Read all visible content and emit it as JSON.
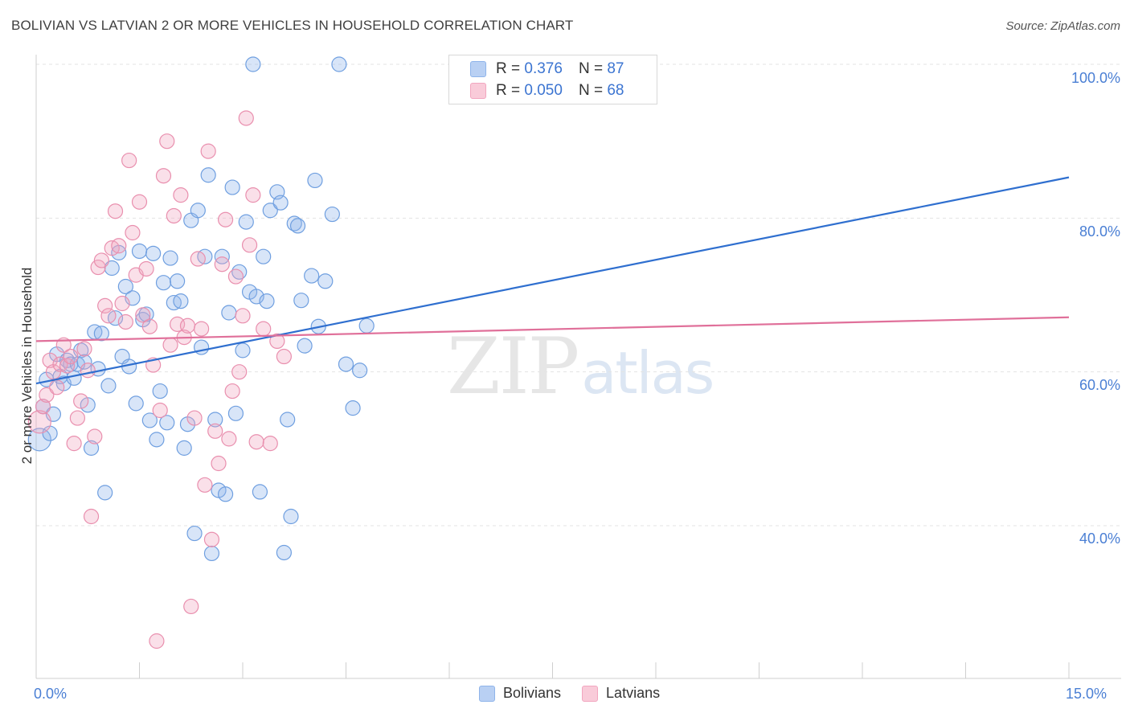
{
  "title": "BOLIVIAN VS LATVIAN 2 OR MORE VEHICLES IN HOUSEHOLD CORRELATION CHART",
  "source": "Source: ZipAtlas.com",
  "watermark": {
    "zip": "ZIP",
    "atlas": "atlas"
  },
  "legend": {
    "rows": [
      {
        "r_label": "R = ",
        "r_value": "0.376",
        "n_label": "N = ",
        "n_value": "87"
      },
      {
        "r_label": "R = ",
        "r_value": "0.050",
        "n_label": "N = ",
        "n_value": "68"
      }
    ]
  },
  "chart_data": {
    "type": "scatter",
    "xlabel": "",
    "ylabel": "2 or more Vehicles in Household",
    "xlim": [
      0,
      15
    ],
    "ylim": [
      20,
      102
    ],
    "x_tick_labels": [
      "0.0%",
      "15.0%"
    ],
    "y_ticks": [
      40,
      60,
      80,
      100
    ],
    "y_tick_labels": [
      "40.0%",
      "60.0%",
      "80.0%",
      "100.0%"
    ],
    "grid": true,
    "legend_position": "top-center",
    "colors": {
      "bolivians": "#8fb4ea",
      "latvians": "#f2a6bf",
      "bolivians_line": "#2f6fcf",
      "latvians_line": "#e0709a",
      "tick_text": "#4a7fd4"
    },
    "series": [
      {
        "name": "Bolivians",
        "trend": {
          "x": [
            0,
            15
          ],
          "y": [
            58.5,
            85.3
          ]
        },
        "points": [
          [
            0.05,
            51.2
          ],
          [
            0.1,
            55.5
          ],
          [
            0.15,
            59.0
          ],
          [
            0.2,
            52.0
          ],
          [
            0.25,
            54.5
          ],
          [
            0.3,
            62.3
          ],
          [
            0.35,
            59.4
          ],
          [
            0.4,
            58.5
          ],
          [
            0.45,
            61.5
          ],
          [
            0.5,
            61.0
          ],
          [
            0.55,
            59.2
          ],
          [
            0.6,
            61.0
          ],
          [
            0.65,
            62.8
          ],
          [
            0.7,
            61.3
          ],
          [
            0.75,
            55.7
          ],
          [
            0.8,
            50.1
          ],
          [
            0.85,
            65.2
          ],
          [
            0.9,
            60.4
          ],
          [
            0.95,
            65.0
          ],
          [
            1.0,
            44.3
          ],
          [
            1.05,
            58.2
          ],
          [
            1.1,
            73.5
          ],
          [
            1.15,
            67.0
          ],
          [
            1.2,
            75.5
          ],
          [
            1.25,
            62.0
          ],
          [
            1.3,
            71.1
          ],
          [
            1.35,
            60.7
          ],
          [
            1.4,
            69.6
          ],
          [
            1.45,
            55.9
          ],
          [
            1.5,
            75.7
          ],
          [
            1.55,
            66.8
          ],
          [
            1.6,
            67.5
          ],
          [
            1.65,
            53.7
          ],
          [
            1.7,
            75.4
          ],
          [
            1.75,
            51.2
          ],
          [
            1.8,
            57.5
          ],
          [
            1.85,
            71.6
          ],
          [
            1.9,
            53.4
          ],
          [
            1.95,
            74.8
          ],
          [
            2.0,
            69.0
          ],
          [
            2.05,
            71.8
          ],
          [
            2.1,
            69.2
          ],
          [
            2.15,
            50.1
          ],
          [
            2.2,
            53.2
          ],
          [
            2.25,
            79.7
          ],
          [
            2.3,
            39.0
          ],
          [
            2.35,
            81.0
          ],
          [
            2.4,
            63.2
          ],
          [
            2.45,
            75.0
          ],
          [
            2.5,
            85.6
          ],
          [
            2.55,
            36.4
          ],
          [
            2.6,
            53.8
          ],
          [
            2.65,
            44.6
          ],
          [
            2.7,
            75.0
          ],
          [
            2.75,
            44.1
          ],
          [
            2.8,
            67.7
          ],
          [
            2.85,
            84.0
          ],
          [
            2.9,
            54.6
          ],
          [
            2.95,
            73.0
          ],
          [
            3.0,
            62.8
          ],
          [
            3.05,
            79.5
          ],
          [
            3.1,
            70.4
          ],
          [
            3.15,
            100.0
          ],
          [
            3.2,
            69.8
          ],
          [
            3.25,
            44.4
          ],
          [
            3.3,
            75.0
          ],
          [
            3.35,
            69.2
          ],
          [
            3.4,
            81.0
          ],
          [
            3.5,
            83.4
          ],
          [
            3.55,
            82.0
          ],
          [
            3.6,
            36.5
          ],
          [
            3.65,
            53.8
          ],
          [
            3.7,
            41.2
          ],
          [
            3.75,
            79.3
          ],
          [
            3.8,
            79.0
          ],
          [
            3.85,
            69.3
          ],
          [
            3.9,
            63.4
          ],
          [
            4.0,
            72.5
          ],
          [
            4.05,
            84.9
          ],
          [
            4.1,
            65.9
          ],
          [
            4.2,
            71.8
          ],
          [
            4.3,
            80.5
          ],
          [
            4.4,
            100.0
          ],
          [
            4.5,
            61.0
          ],
          [
            4.6,
            55.3
          ],
          [
            4.7,
            60.2
          ],
          [
            4.8,
            66.0
          ]
        ]
      },
      {
        "name": "Latvians",
        "trend": {
          "x": [
            0,
            15
          ],
          "y": [
            64.0,
            67.1
          ]
        },
        "points": [
          [
            0.05,
            53.5
          ],
          [
            0.1,
            55.5
          ],
          [
            0.15,
            57.0
          ],
          [
            0.2,
            61.5
          ],
          [
            0.25,
            60.0
          ],
          [
            0.3,
            58.0
          ],
          [
            0.35,
            61.0
          ],
          [
            0.4,
            63.5
          ],
          [
            0.45,
            60.8
          ],
          [
            0.5,
            62.0
          ],
          [
            0.55,
            50.7
          ],
          [
            0.6,
            54.0
          ],
          [
            0.65,
            56.2
          ],
          [
            0.7,
            63.0
          ],
          [
            0.75,
            60.2
          ],
          [
            0.8,
            41.2
          ],
          [
            0.85,
            51.6
          ],
          [
            0.9,
            73.6
          ],
          [
            0.95,
            74.5
          ],
          [
            1.0,
            68.6
          ],
          [
            1.05,
            67.3
          ],
          [
            1.1,
            76.1
          ],
          [
            1.15,
            80.9
          ],
          [
            1.2,
            76.4
          ],
          [
            1.25,
            68.9
          ],
          [
            1.3,
            66.5
          ],
          [
            1.35,
            87.5
          ],
          [
            1.4,
            78.1
          ],
          [
            1.45,
            72.6
          ],
          [
            1.5,
            82.1
          ],
          [
            1.55,
            67.4
          ],
          [
            1.6,
            73.4
          ],
          [
            1.65,
            65.9
          ],
          [
            1.7,
            60.9
          ],
          [
            1.75,
            25.0
          ],
          [
            1.8,
            55.0
          ],
          [
            1.85,
            85.5
          ],
          [
            1.9,
            90.0
          ],
          [
            1.95,
            63.5
          ],
          [
            2.0,
            80.3
          ],
          [
            2.05,
            66.2
          ],
          [
            2.1,
            83.0
          ],
          [
            2.15,
            64.5
          ],
          [
            2.2,
            66.0
          ],
          [
            2.25,
            29.5
          ],
          [
            2.3,
            54.0
          ],
          [
            2.35,
            74.7
          ],
          [
            2.4,
            65.6
          ],
          [
            2.45,
            45.3
          ],
          [
            2.5,
            88.7
          ],
          [
            2.55,
            38.2
          ],
          [
            2.6,
            52.3
          ],
          [
            2.65,
            48.1
          ],
          [
            2.7,
            74.0
          ],
          [
            2.75,
            79.8
          ],
          [
            2.8,
            51.3
          ],
          [
            2.85,
            57.5
          ],
          [
            2.9,
            72.4
          ],
          [
            2.95,
            60.0
          ],
          [
            3.0,
            67.3
          ],
          [
            3.05,
            93.0
          ],
          [
            3.1,
            76.5
          ],
          [
            3.15,
            83.0
          ],
          [
            3.2,
            50.9
          ],
          [
            3.3,
            65.6
          ],
          [
            3.4,
            50.7
          ],
          [
            3.5,
            64.0
          ],
          [
            3.6,
            62.0
          ]
        ]
      }
    ]
  },
  "bottom_legend": [
    {
      "label": "Bolivians"
    },
    {
      "label": "Latvians"
    }
  ]
}
